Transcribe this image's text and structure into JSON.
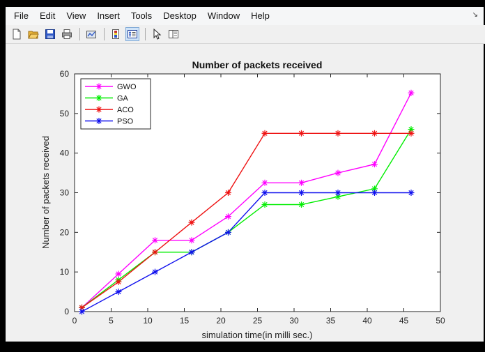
{
  "menu": {
    "items": [
      "File",
      "Edit",
      "View",
      "Insert",
      "Tools",
      "Desktop",
      "Window",
      "Help"
    ],
    "dock_glyph": "↘"
  },
  "toolbar": {
    "icons": [
      "new-figure-icon",
      "open-file-icon",
      "save-icon",
      "print-icon",
      "link-plot-icon",
      "colorbar-icon",
      "legend-icon",
      "pointer-icon",
      "property-editor-icon"
    ]
  },
  "chart_data": {
    "type": "line",
    "title": "Number of packets received",
    "xlabel": "simulation time(in milli sec.)",
    "ylabel": "Number of packets received",
    "xlim": [
      0,
      50
    ],
    "ylim": [
      0,
      60
    ],
    "xticks": [
      0,
      5,
      10,
      15,
      20,
      25,
      30,
      35,
      40,
      45,
      50
    ],
    "yticks": [
      0,
      10,
      20,
      30,
      40,
      50,
      60
    ],
    "grid": false,
    "legend_position": "top-left",
    "x": [
      1,
      6,
      11,
      16,
      21,
      26,
      31,
      36,
      41,
      46
    ],
    "series": [
      {
        "name": "GWO",
        "color": "#ff00ff",
        "values": [
          1,
          9.5,
          18,
          18,
          24,
          32.5,
          32.5,
          35,
          37.2,
          55.2
        ]
      },
      {
        "name": "GA",
        "color": "#00ee00",
        "values": [
          1,
          8,
          15,
          15,
          20,
          27,
          27,
          29,
          31,
          46
        ]
      },
      {
        "name": "ACO",
        "color": "#ee1111",
        "values": [
          1,
          7.5,
          15,
          22.5,
          30,
          45,
          45,
          45,
          45,
          45
        ]
      },
      {
        "name": "PSO",
        "color": "#1010ee",
        "values": [
          0,
          5,
          10,
          15,
          20,
          30,
          30,
          30,
          30,
          30
        ]
      }
    ]
  }
}
